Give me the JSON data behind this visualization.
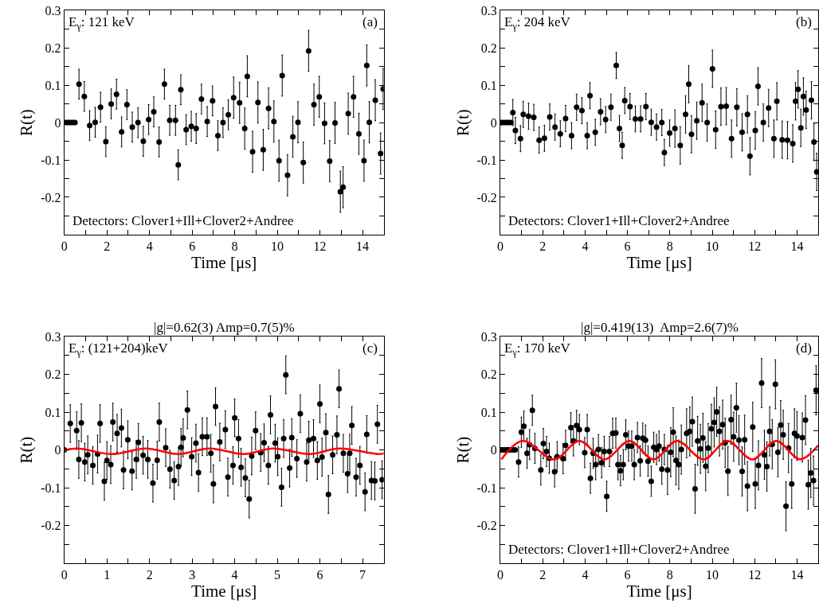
{
  "chart_data": [
    {
      "type": "scatter",
      "xlabel": "Time [μs]",
      "ylabel": "R(t)",
      "marker": "circle",
      "xlim": [
        0,
        15
      ],
      "ylim": [
        -0.3,
        0.3
      ],
      "xticks": [
        0,
        {
          "value": 1,
          "label": null
        },
        2,
        {
          "value": 3,
          "label": null
        },
        4,
        {
          "value": 5,
          "label": null
        },
        6,
        {
          "value": 7,
          "label": null
        },
        8,
        {
          "value": 9,
          "label": null
        },
        10,
        {
          "value": 11,
          "label": null
        },
        12,
        {
          "value": 13,
          "label": null
        },
        14
      ],
      "yticks": [
        {
          "value": -0.3,
          "label": null
        },
        {
          "value": -0.25,
          "label": null
        },
        -0.2,
        {
          "value": -0.15,
          "label": null
        },
        -0.1,
        {
          "value": -0.05,
          "label": null
        },
        0,
        {
          "value": 0.05,
          "label": null
        },
        0.1,
        {
          "value": 0.15,
          "label": null
        },
        0.2,
        {
          "value": 0.25,
          "label": null
        },
        0.3
      ],
      "annotations": [
        "E$_{γ}$: 121 keV",
        "(a)",
        "Detectors: Clover1+Ill+Clover2+Andree"
      ],
      "series": [
        {
          "color": "#000000",
          "x": [
            0,
            0.1,
            0.2,
            0.3,
            0.4,
            0.5,
            0.69,
            0.94,
            1.19,
            1.45,
            1.7,
            1.95,
            2.2,
            2.45,
            2.69,
            2.94,
            3.19,
            3.46,
            3.71,
            3.96,
            4.2,
            4.45,
            4.7,
            4.95,
            5.22,
            5.35,
            5.47,
            5.72,
            5.96,
            6.19,
            6.44,
            6.71,
            6.96,
            7.21,
            7.45,
            7.7,
            7.95,
            8.23,
            8.47,
            8.59,
            8.84,
            9.09,
            9.34,
            9.59,
            9.84,
            10.08,
            10.23,
            10.48,
            10.73,
            10.97,
            11.22,
            11.47,
            11.72,
            11.97,
            12.22,
            12.46,
            12.71,
            12.96,
            13.09,
            13.33,
            13.58,
            13.83,
            14.07,
            14.2,
            14.32,
            14.6,
            14.85,
            14.97
          ],
          "values": [
            0,
            0,
            0,
            0,
            0,
            0,
            0.103,
            0.07,
            -0.008,
            0.001,
            0.041,
            -0.051,
            0.05,
            0.076,
            -0.025,
            0.048,
            -0.012,
            0,
            -0.05,
            0.008,
            0.029,
            -0.052,
            0.103,
            0.006,
            0.006,
            -0.113,
            0.088,
            -0.019,
            -0.01,
            -0.016,
            0.063,
            0.003,
            0.058,
            -0.035,
            0,
            0.021,
            0.067,
            0.053,
            -0.016,
            0.124,
            -0.078,
            0.054,
            -0.073,
            0.038,
            0.003,
            -0.102,
            0.126,
            -0.141,
            -0.038,
            0.001,
            -0.107,
            0.192,
            0.048,
            0.069,
            -0.002,
            -0.103,
            -0.001,
            -0.185,
            -0.173,
            0.024,
            0.069,
            -0.03,
            -0.102,
            0.153,
            0.001,
            0.06,
            -0.083,
            0.09
          ],
          "errors": [
            null,
            null,
            null,
            null,
            null,
            null,
            0.04,
            0.04,
            0.04,
            0.04,
            0.04,
            0.04,
            0.04,
            0.04,
            0.04,
            0.04,
            0.04,
            0.04,
            0.04,
            0.04,
            0.04,
            0.04,
            0.04,
            0.04,
            0.04,
            0.04,
            0.04,
            0.04,
            0.04,
            0.04,
            0.04,
            0.04,
            0.04,
            0.04,
            0.04,
            0.04,
            0.055,
            0.055,
            0.055,
            0.055,
            0.055,
            0.055,
            0.055,
            0.055,
            0.055,
            0.055,
            0.055,
            0.055,
            0.055,
            0.055,
            0.055,
            0.055,
            0.055,
            0.055,
            0.055,
            0.055,
            0.055,
            0.055,
            0.055,
            0.055,
            0.055,
            0.055,
            0.055,
            0.055,
            0.055,
            0.055,
            0.055,
            0.055
          ]
        }
      ]
    },
    {
      "type": "scatter",
      "xlabel": "Time [μs]",
      "ylabel": "R(t)",
      "marker": "circle",
      "xlim": [
        0,
        15
      ],
      "ylim": [
        -0.3,
        0.3
      ],
      "xticks": [
        0,
        {
          "value": 1,
          "label": null
        },
        2,
        {
          "value": 3,
          "label": null
        },
        4,
        {
          "value": 5,
          "label": null
        },
        6,
        {
          "value": 7,
          "label": null
        },
        8,
        {
          "value": 9,
          "label": null
        },
        10,
        {
          "value": 11,
          "label": null
        },
        12,
        {
          "value": 13,
          "label": null
        },
        14
      ],
      "yticks": [
        {
          "value": -0.3,
          "label": null
        },
        {
          "value": -0.25,
          "label": null
        },
        -0.2,
        {
          "value": -0.15,
          "label": null
        },
        -0.1,
        {
          "value": -0.05,
          "label": null
        },
        0,
        {
          "value": 0.05,
          "label": null
        },
        0.1,
        {
          "value": 0.15,
          "label": null
        },
        0.2,
        {
          "value": 0.25,
          "label": null
        },
        0.3
      ],
      "annotations": [
        "E$_{γ}$: 204 keV",
        "(b)",
        "Detectors: Clover1+Ill+Clover2+Andree"
      ],
      "series": [
        {
          "color": "#000000",
          "x": [
            0,
            0.1,
            0.2,
            0.3,
            0.4,
            0.5,
            0.59,
            0.71,
            0.95,
            1.08,
            1.33,
            1.58,
            1.83,
            2.08,
            2.33,
            2.58,
            2.83,
            3.08,
            3.36,
            3.6,
            3.85,
            4.1,
            4.23,
            4.48,
            4.73,
            4.97,
            5.22,
            5.47,
            5.62,
            5.75,
            5.87,
            6.12,
            6.37,
            6.62,
            6.87,
            7.12,
            7.37,
            7.62,
            7.74,
            7.99,
            8.24,
            8.49,
            8.74,
            8.89,
            9.02,
            9.27,
            9.52,
            9.76,
            10.01,
            10.16,
            10.41,
            10.66,
            10.91,
            11.16,
            11.41,
            11.66,
            11.78,
            12.03,
            12.16,
            12.41,
            12.66,
            12.91,
            13.05,
            13.3,
            13.55,
            13.8,
            13.93,
            14.05,
            14.18,
            14.3,
            14.43,
            14.68,
            14.8,
            14.93
          ],
          "values": [
            0,
            0,
            0,
            0,
            0,
            0,
            0.027,
            -0.021,
            -0.043,
            0.022,
            0.017,
            0.014,
            -0.047,
            -0.042,
            0.015,
            -0.012,
            -0.03,
            0.011,
            -0.035,
            0.041,
            0.032,
            -0.035,
            0.072,
            -0.026,
            0.029,
            0.008,
            0.041,
            0.153,
            -0.016,
            -0.061,
            0.059,
            0.043,
            0.01,
            0.01,
            0.043,
            0.001,
            -0.012,
            0,
            -0.08,
            -0.028,
            -0.016,
            -0.061,
            0.022,
            0.103,
            -0.031,
            0.005,
            0.053,
            0,
            0.144,
            -0.019,
            0.043,
            0.044,
            -0.043,
            0.041,
            -0.026,
            0.022,
            -0.09,
            -0.021,
            0.097,
            0,
            0.039,
            -0.043,
            0.057,
            -0.046,
            -0.047,
            -0.056,
            0.057,
            0.089,
            -0.014,
            0.07,
            0.034,
            0.06,
            -0.052,
            -0.132
          ],
          "errors": [
            null,
            null,
            null,
            null,
            null,
            null,
            0.035,
            0.035,
            0.035,
            0.035,
            0.035,
            0.035,
            0.035,
            0.035,
            0.035,
            0.035,
            0.035,
            0.035,
            0.035,
            0.035,
            0.035,
            0.035,
            0.035,
            0.035,
            0.035,
            0.035,
            0.035,
            0.035,
            0.035,
            0.035,
            0.035,
            0.035,
            0.035,
            0.035,
            0.035,
            0.035,
            0.035,
            0.035,
            0.035,
            0.035,
            0.05,
            0.05,
            0.05,
            0.05,
            0.05,
            0.05,
            0.05,
            0.05,
            0.05,
            0.05,
            0.05,
            0.05,
            0.05,
            0.05,
            0.05,
            0.05,
            0.05,
            0.05,
            0.05,
            0.05,
            0.05,
            0.05,
            0.05,
            0.05,
            0.05,
            0.05,
            0.05,
            0.05,
            0.05,
            0.05,
            0.05,
            0.05,
            0.05,
            0.05
          ]
        }
      ]
    },
    {
      "type": "scatter",
      "title": "|g|=0.62(3) Amp=0.7(5)%",
      "xlabel": "Time [μs]",
      "ylabel": "R(t)",
      "marker": "circle",
      "xlim": [
        0,
        7.5
      ],
      "ylim": [
        -0.3,
        0.3
      ],
      "xticks": [
        0,
        {
          "value": 0.5,
          "label": null
        },
        1,
        {
          "value": 1.5,
          "label": null
        },
        2,
        {
          "value": 2.5,
          "label": null
        },
        3,
        {
          "value": 3.5,
          "label": null
        },
        4,
        {
          "value": 4.5,
          "label": null
        },
        5,
        {
          "value": 5.5,
          "label": null
        },
        6,
        {
          "value": 6.5,
          "label": null
        },
        7
      ],
      "yticks": [
        {
          "value": -0.3,
          "label": null
        },
        {
          "value": -0.25,
          "label": null
        },
        -0.2,
        {
          "value": -0.15,
          "label": null
        },
        -0.1,
        {
          "value": -0.05,
          "label": null
        },
        0,
        {
          "value": 0.05,
          "label": null
        },
        0.1,
        {
          "value": 0.15,
          "label": null
        },
        0.2,
        {
          "value": 0.25,
          "label": null
        },
        0.3
      ],
      "annotations": [
        "E$_{γ}$: (121+204)keV",
        "(c)"
      ],
      "series": [
        {
          "color": "#000000",
          "x": [
            0,
            0.14,
            0.29,
            0.34,
            0.4,
            0.48,
            0.55,
            0.67,
            0.78,
            0.84,
            0.94,
            1.0,
            1.09,
            1.14,
            1.24,
            1.34,
            1.39,
            1.49,
            1.59,
            1.69,
            1.74,
            1.85,
            1.96,
            2.08,
            2.18,
            2.23,
            2.38,
            2.48,
            2.58,
            2.68,
            2.74,
            2.79,
            2.89,
            2.99,
            3.09,
            3.15,
            3.24,
            3.35,
            3.44,
            3.5,
            3.55,
            3.65,
            3.78,
            3.84,
            3.96,
            4.0,
            4.09,
            4.15,
            4.25,
            4.34,
            4.4,
            4.49,
            4.61,
            4.69,
            4.79,
            4.84,
            4.95,
            5.01,
            5.1,
            5.15,
            5.2,
            5.29,
            5.34,
            5.46,
            5.54,
            5.69,
            5.74,
            5.85,
            5.94,
            6.0,
            6.05,
            6.14,
            6.2,
            6.3,
            6.4,
            6.45,
            6.55,
            6.65,
            6.7,
            6.75,
            6.85,
            6.94,
            7.06,
            7.1,
            7.21,
            7.29,
            7.35,
            7.46
          ],
          "values": [
            0,
            0.07,
            0.051,
            -0.025,
            0.072,
            -0.032,
            -0.013,
            -0.041,
            -0.011,
            0.07,
            -0.083,
            -0.028,
            -0.039,
            0.074,
            0.044,
            0.058,
            -0.053,
            0.027,
            -0.056,
            -0.025,
            0.02,
            -0.014,
            -0.025,
            -0.088,
            -0.027,
            0.074,
            0.006,
            -0.051,
            -0.081,
            -0.044,
            0.007,
            0.032,
            0.106,
            -0.018,
            0.018,
            -0.06,
            0.035,
            0.035,
            -0.009,
            -0.09,
            0.115,
            0.021,
            0.054,
            -0.072,
            -0.041,
            0.085,
            0.03,
            -0.046,
            -0.074,
            -0.13,
            -0.016,
            0.051,
            -0.007,
            0.019,
            -0.041,
            0.093,
            0.018,
            -0.018,
            -0.099,
            0.03,
            0.199,
            -0.048,
            0.033,
            -0.023,
            0.096,
            -0.032,
            0.026,
            0.03,
            -0.028,
            0.122,
            -0.019,
            0.046,
            -0.118,
            -0.013,
            0.04,
            0.162,
            -0.009,
            -0.063,
            -0.009,
            0.065,
            -0.072,
            -0.041,
            -0.111,
            0.041,
            -0.081,
            -0.082,
            0.068,
            -0.079
          ],
          "errors": [
            null,
            0.05,
            0.05,
            0.05,
            0.05,
            0.05,
            0.05,
            0.05,
            0.05,
            0.05,
            0.05,
            0.05,
            0.05,
            0.05,
            0.05,
            0.05,
            0.05,
            0.05,
            0.05,
            0.05,
            0.05,
            0.05,
            0.05,
            0.05,
            0.05,
            0.05,
            0.05,
            0.05,
            0.05,
            0.05,
            0.05,
            0.05,
            0.05,
            0.05,
            0.05,
            0.05,
            0.05,
            0.05,
            0.05,
            0.05,
            0.05,
            0.05,
            0.05,
            0.05,
            0.05,
            0.05,
            0.05,
            0.05,
            0.05,
            0.05,
            0.05,
            0.05,
            0.05,
            0.05,
            0.05,
            0.05,
            0.05,
            0.05,
            0.05,
            0.05,
            0.05,
            0.05,
            0.05,
            0.05,
            0.05,
            0.05,
            0.05,
            0.05,
            0.05,
            0.05,
            0.05,
            0.05,
            0.05,
            0.05,
            0.05,
            0.05,
            0.05,
            0.05,
            0.05,
            0.05,
            0.05,
            0.05,
            0.05,
            0.05,
            0.05,
            0.05,
            0.05,
            0.05
          ]
        },
        {
          "type": "line",
          "marker": "none",
          "color": "#ff0000",
          "x": [
            0,
            0.31,
            1.12,
            1.92,
            2.67,
            3.41,
            4.22,
            4.9,
            5.77,
            6.45,
            7.38,
            7.5
          ],
          "values": [
            -0.001,
            0.004,
            -0.011,
            0.004,
            -0.011,
            0.004,
            -0.011,
            0.004,
            -0.011,
            0.004,
            -0.011,
            -0.009
          ]
        }
      ]
    },
    {
      "type": "scatter",
      "title": "|g|=0.419(13)  Amp=2.6(7)%",
      "xlabel": "Time [μs]",
      "ylabel": "R(t)",
      "marker": "circle",
      "xlim": [
        0,
        15
      ],
      "ylim": [
        -0.3,
        0.3
      ],
      "xticks": [
        0,
        {
          "value": 1,
          "label": null
        },
        2,
        {
          "value": 3,
          "label": null
        },
        4,
        {
          "value": 5,
          "label": null
        },
        6,
        {
          "value": 7,
          "label": null
        },
        8,
        {
          "value": 9,
          "label": null
        },
        10,
        {
          "value": 11,
          "label": null
        },
        12,
        {
          "value": 13,
          "label": null
        },
        14
      ],
      "yticks": [
        {
          "value": -0.3,
          "label": null
        },
        {
          "value": -0.25,
          "label": null
        },
        -0.2,
        {
          "value": -0.15,
          "label": null
        },
        -0.1,
        {
          "value": -0.05,
          "label": null
        },
        0,
        {
          "value": 0.05,
          "label": null
        },
        0.1,
        {
          "value": 0.15,
          "label": null
        },
        0.2,
        {
          "value": 0.25,
          "label": null
        },
        0.3
      ],
      "annotations": [
        "E$_{γ}$: 170 keV",
        "(d)",
        "Detectors: Clover1+Ill+Clover2+Andree"
      ],
      "series": [
        {
          "color": "#000000",
          "x": [
            0,
            0.1,
            0.2,
            0.3,
            0.4,
            0.5,
            0.6,
            0.7,
            0.86,
            0.99,
            1.11,
            1.26,
            1.38,
            1.51,
            1.63,
            1.91,
            2.03,
            2.18,
            2.31,
            2.56,
            2.68,
            2.96,
            3.08,
            3.33,
            3.45,
            3.6,
            3.73,
            3.98,
            4.1,
            4.25,
            4.38,
            4.5,
            4.63,
            4.78,
            4.9,
            5.02,
            5.15,
            5.3,
            5.45,
            5.55,
            5.67,
            5.8,
            5.92,
            6.05,
            6.2,
            6.32,
            6.47,
            6.6,
            6.72,
            6.85,
            6.97,
            7.12,
            7.24,
            7.37,
            7.49,
            7.62,
            7.74,
            7.89,
            8.04,
            8.16,
            8.29,
            8.42,
            8.54,
            8.79,
            8.94,
            9.06,
            9.19,
            9.31,
            9.44,
            9.56,
            9.69,
            9.81,
            9.96,
            10.09,
            10.21,
            10.34,
            10.49,
            10.61,
            10.74,
            10.89,
            11.01,
            11.14,
            11.26,
            11.41,
            11.53,
            11.66,
            11.91,
            12.03,
            12.18,
            12.33,
            12.46,
            12.58,
            12.71,
            12.83,
            12.98,
            13.1,
            13.23,
            13.35,
            13.48,
            13.6,
            13.75,
            13.88,
            14.0,
            14.25,
            14.4,
            14.53,
            14.65,
            14.78,
            14.9
          ],
          "values": [
            0,
            0,
            0,
            0,
            0,
            0,
            0,
            0,
            -0.032,
            0.047,
            0.063,
            -0.009,
            0.014,
            0.105,
            0.004,
            -0.053,
            0.017,
            -0.004,
            -0.022,
            -0.058,
            -0.018,
            -0.023,
            0.012,
            0.059,
            0.024,
            0.065,
            0.054,
            -0.007,
            0.054,
            -0.075,
            -0.009,
            -0.039,
            0.001,
            -0.034,
            -0.004,
            -0.123,
            -0.004,
            0.044,
            0.045,
            -0.039,
            -0.055,
            -0.039,
            0.04,
            0.01,
            0.01,
            -0.039,
            0.033,
            -0.029,
            0.031,
            0.026,
            -0.03,
            -0.083,
            0.007,
            0.001,
            0.01,
            -0.051,
            0.001,
            -0.053,
            -0.006,
            0.047,
            -0.028,
            -0.039,
            0.001,
            0.044,
            0.049,
            0.075,
            -0.103,
            0.024,
            0.003,
            0.032,
            -0.043,
            0.005,
            0.056,
            0.073,
            0.101,
            0.049,
            0.067,
            0.019,
            -0.056,
            0.08,
            0.035,
            0.112,
            0.026,
            -0.057,
            0.027,
            -0.096,
            0.061,
            -0.09,
            -0.041,
            0.177,
            -0.013,
            -0.044,
            0.049,
            0.015,
            0.174,
            -0.006,
            0.066,
            0.04,
            -0.149,
            0.005,
            -0.09,
            0.044,
            0.037,
            0.033,
            0.079,
            -0.092,
            -0.061,
            -0.081,
            0.158
          ],
          "errors": [
            null,
            null,
            null,
            null,
            null,
            null,
            null,
            null,
            0.04,
            0.04,
            0.04,
            0.04,
            0.04,
            0.04,
            0.04,
            0.04,
            0.04,
            0.04,
            0.04,
            0.04,
            0.04,
            0.04,
            0.04,
            0.04,
            0.04,
            0.04,
            0.04,
            0.04,
            0.04,
            0.04,
            0.04,
            0.04,
            0.04,
            0.04,
            0.04,
            0.04,
            0.04,
            0.04,
            0.04,
            0.04,
            0.04,
            0.04,
            0.04,
            0.04,
            0.04,
            0.04,
            0.04,
            0.04,
            0.04,
            0.04,
            0.04,
            0.04,
            0.04,
            0.04,
            0.04,
            0.04,
            0.04,
            0.065,
            0.065,
            0.065,
            0.065,
            0.065,
            0.065,
            0.065,
            0.065,
            0.065,
            0.065,
            0.065,
            0.065,
            0.065,
            0.065,
            0.065,
            0.065,
            0.065,
            0.065,
            0.065,
            0.065,
            0.065,
            0.065,
            0.065,
            0.065,
            0.065,
            0.065,
            0.065,
            0.065,
            0.065,
            0.065,
            0.065,
            0.065,
            0.065,
            0.065,
            0.065,
            0.065,
            0.065,
            0.065,
            0.065,
            0.065,
            0.065,
            0.065,
            0.065,
            0.065,
            0.065,
            0.065,
            0.065,
            0.065,
            0.065,
            0.065,
            0.065,
            0.065
          ]
        },
        {
          "type": "line",
          "marker": "none",
          "color": "#ff0000",
          "x": [
            0.05,
            1.05,
            2.54,
            3.73,
            4.91,
            6.1,
            7.22,
            8.34,
            9.59,
            10.71,
            11.89,
            13.02,
            14.14,
            15
          ],
          "values": [
            -0.025,
            0.024,
            -0.025,
            0.024,
            -0.025,
            0.024,
            -0.025,
            0.024,
            -0.025,
            0.024,
            -0.025,
            0.024,
            -0.025,
            0.012
          ]
        }
      ]
    }
  ]
}
